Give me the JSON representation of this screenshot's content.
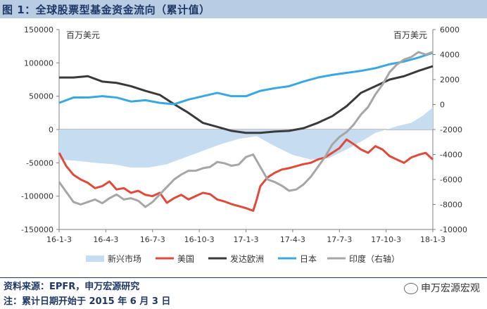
{
  "title": "图 1：全球股票型基金资金流向（累计值）",
  "footnotes": {
    "source": "资料来源：EPFR，申万宏源研究",
    "note": "注：累计日期开始于 2015 年 6 月 3 日"
  },
  "brand": "申万宏源宏观",
  "chart_data": {
    "type": "line",
    "left_unit": "百万美元",
    "right_unit": "百万美元",
    "left_axis": {
      "min": -150000,
      "max": 150000,
      "step": 50000,
      "ticks": [
        "150000",
        "100000",
        "50000",
        "0",
        "-50000",
        "-100000",
        "-150000"
      ]
    },
    "right_axis": {
      "min": -10000,
      "max": 6000,
      "step": 2000,
      "ticks": [
        "6000",
        "4000",
        "2000",
        "0",
        "-2000",
        "-4000",
        "-6000",
        "-8000",
        "-10000"
      ]
    },
    "x_ticks": [
      "16-1-3",
      "16-4-3",
      "16-7-3",
      "16-10-3",
      "17-1-3",
      "17-4-3",
      "17-7-3",
      "17-10-3",
      "18-1-3"
    ],
    "x_range": [
      0,
      104
    ],
    "series": [
      {
        "name": "新兴市场",
        "type": "area",
        "axis": "left",
        "color": "#c6dcf0",
        "points": [
          [
            0,
            -45000
          ],
          [
            5,
            -47000
          ],
          [
            10,
            -50000
          ],
          [
            15,
            -52000
          ],
          [
            20,
            -57000
          ],
          [
            25,
            -57000
          ],
          [
            30,
            -52000
          ],
          [
            35,
            -42000
          ],
          [
            40,
            -32000
          ],
          [
            45,
            -22000
          ],
          [
            50,
            -14000
          ],
          [
            55,
            -10000
          ],
          [
            60,
            -25000
          ],
          [
            65,
            -38000
          ],
          [
            70,
            -45000
          ],
          [
            75,
            -43000
          ],
          [
            80,
            -30000
          ],
          [
            85,
            -15000
          ],
          [
            88,
            -5000
          ],
          [
            90,
            -2000
          ],
          [
            94,
            5000
          ],
          [
            98,
            10000
          ],
          [
            101,
            20000
          ],
          [
            104,
            33000
          ]
        ]
      },
      {
        "name": "美国",
        "type": "line",
        "axis": "left",
        "color": "#e04a3a",
        "points": [
          [
            0,
            -35000
          ],
          [
            2,
            -55000
          ],
          [
            4,
            -68000
          ],
          [
            6,
            -75000
          ],
          [
            8,
            -80000
          ],
          [
            10,
            -88000
          ],
          [
            12,
            -85000
          ],
          [
            14,
            -78000
          ],
          [
            16,
            -90000
          ],
          [
            18,
            -88000
          ],
          [
            20,
            -95000
          ],
          [
            22,
            -92000
          ],
          [
            24,
            -98000
          ],
          [
            26,
            -100000
          ],
          [
            28,
            -95000
          ],
          [
            30,
            -110000
          ],
          [
            32,
            -103000
          ],
          [
            34,
            -98000
          ],
          [
            36,
            -105000
          ],
          [
            38,
            -100000
          ],
          [
            40,
            -95000
          ],
          [
            42,
            -97000
          ],
          [
            44,
            -105000
          ],
          [
            46,
            -108000
          ],
          [
            48,
            -112000
          ],
          [
            50,
            -115000
          ],
          [
            52,
            -118000
          ],
          [
            54,
            -122000
          ],
          [
            55,
            -105000
          ],
          [
            56,
            -85000
          ],
          [
            58,
            -72000
          ],
          [
            60,
            -65000
          ],
          [
            62,
            -60000
          ],
          [
            64,
            -58000
          ],
          [
            66,
            -55000
          ],
          [
            68,
            -52000
          ],
          [
            70,
            -50000
          ],
          [
            72,
            -45000
          ],
          [
            74,
            -42000
          ],
          [
            76,
            -35000
          ],
          [
            78,
            -28000
          ],
          [
            80,
            -15000
          ],
          [
            82,
            -22000
          ],
          [
            84,
            -30000
          ],
          [
            86,
            -35000
          ],
          [
            88,
            -25000
          ],
          [
            90,
            -30000
          ],
          [
            92,
            -40000
          ],
          [
            94,
            -45000
          ],
          [
            96,
            -50000
          ],
          [
            98,
            -42000
          ],
          [
            100,
            -38000
          ],
          [
            102,
            -35000
          ],
          [
            104,
            -45000
          ]
        ]
      },
      {
        "name": "发达欧洲",
        "type": "line",
        "axis": "left",
        "color": "#3a3a3a",
        "points": [
          [
            0,
            78000
          ],
          [
            4,
            78000
          ],
          [
            8,
            80000
          ],
          [
            12,
            72000
          ],
          [
            16,
            70000
          ],
          [
            20,
            65000
          ],
          [
            24,
            58000
          ],
          [
            28,
            52000
          ],
          [
            32,
            38000
          ],
          [
            36,
            25000
          ],
          [
            40,
            10000
          ],
          [
            44,
            4000
          ],
          [
            48,
            -2000
          ],
          [
            52,
            -5000
          ],
          [
            56,
            -5000
          ],
          [
            60,
            -3000
          ],
          [
            64,
            -2000
          ],
          [
            68,
            2000
          ],
          [
            72,
            10000
          ],
          [
            76,
            20000
          ],
          [
            80,
            35000
          ],
          [
            84,
            55000
          ],
          [
            88,
            65000
          ],
          [
            92,
            75000
          ],
          [
            96,
            80000
          ],
          [
            100,
            88000
          ],
          [
            104,
            95000
          ]
        ]
      },
      {
        "name": "日本",
        "type": "line",
        "axis": "left",
        "color": "#3aa8e0",
        "points": [
          [
            0,
            40000
          ],
          [
            4,
            48000
          ],
          [
            8,
            48000
          ],
          [
            12,
            50000
          ],
          [
            16,
            48000
          ],
          [
            20,
            42000
          ],
          [
            24,
            44000
          ],
          [
            28,
            40000
          ],
          [
            32,
            38000
          ],
          [
            36,
            45000
          ],
          [
            40,
            50000
          ],
          [
            44,
            55000
          ],
          [
            48,
            50000
          ],
          [
            52,
            50000
          ],
          [
            56,
            58000
          ],
          [
            60,
            62000
          ],
          [
            64,
            65000
          ],
          [
            68,
            72000
          ],
          [
            72,
            78000
          ],
          [
            76,
            82000
          ],
          [
            80,
            85000
          ],
          [
            84,
            88000
          ],
          [
            88,
            92000
          ],
          [
            92,
            98000
          ],
          [
            96,
            102000
          ],
          [
            100,
            108000
          ],
          [
            104,
            115000
          ]
        ]
      },
      {
        "name": "印度（右轴）",
        "type": "line",
        "axis": "right",
        "color": "#a6a6a6",
        "points": [
          [
            0,
            -6200
          ],
          [
            2,
            -7000
          ],
          [
            4,
            -7800
          ],
          [
            6,
            -8000
          ],
          [
            8,
            -7800
          ],
          [
            10,
            -7600
          ],
          [
            12,
            -7900
          ],
          [
            14,
            -7500
          ],
          [
            16,
            -7200
          ],
          [
            18,
            -7600
          ],
          [
            20,
            -7500
          ],
          [
            22,
            -7700
          ],
          [
            24,
            -8200
          ],
          [
            26,
            -7800
          ],
          [
            28,
            -7200
          ],
          [
            30,
            -6600
          ],
          [
            32,
            -6000
          ],
          [
            34,
            -5600
          ],
          [
            36,
            -5300
          ],
          [
            38,
            -5300
          ],
          [
            40,
            -5100
          ],
          [
            42,
            -5000
          ],
          [
            44,
            -4600
          ],
          [
            46,
            -4700
          ],
          [
            48,
            -4900
          ],
          [
            50,
            -4800
          ],
          [
            52,
            -4200
          ],
          [
            54,
            -4000
          ],
          [
            56,
            -5000
          ],
          [
            58,
            -6000
          ],
          [
            60,
            -6200
          ],
          [
            62,
            -6500
          ],
          [
            64,
            -6900
          ],
          [
            66,
            -6800
          ],
          [
            68,
            -6400
          ],
          [
            70,
            -5800
          ],
          [
            72,
            -5000
          ],
          [
            74,
            -4200
          ],
          [
            76,
            -3200
          ],
          [
            78,
            -2600
          ],
          [
            80,
            -2200
          ],
          [
            82,
            -1600
          ],
          [
            84,
            -800
          ],
          [
            86,
            -200
          ],
          [
            88,
            800
          ],
          [
            90,
            1600
          ],
          [
            92,
            2600
          ],
          [
            94,
            3200
          ],
          [
            96,
            3600
          ],
          [
            98,
            3800
          ],
          [
            100,
            4200
          ],
          [
            102,
            4000
          ],
          [
            104,
            4200
          ]
        ]
      }
    ]
  }
}
